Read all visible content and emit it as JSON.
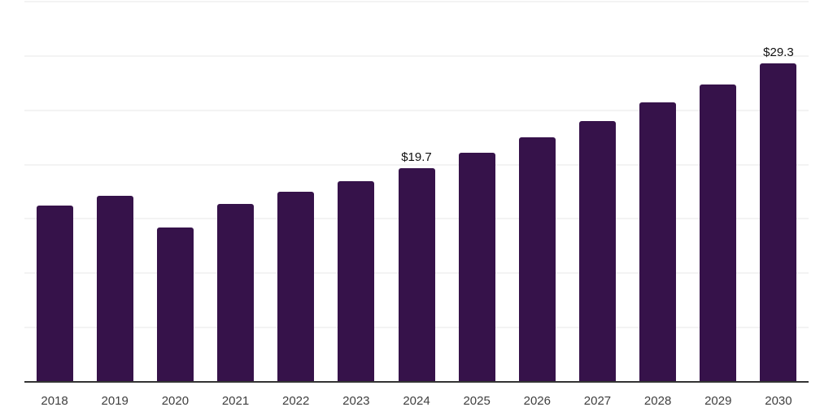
{
  "chart_data": {
    "type": "bar",
    "title": "",
    "xlabel": "",
    "ylabel": "",
    "categories": [
      "2018",
      "2019",
      "2020",
      "2021",
      "2022",
      "2023",
      "2024",
      "2025",
      "2026",
      "2027",
      "2028",
      "2029",
      "2030"
    ],
    "values": [
      16.2,
      17.1,
      14.2,
      16.4,
      17.5,
      18.5,
      19.7,
      21.1,
      22.5,
      24.0,
      25.7,
      27.4,
      29.3
    ],
    "data_labels": {
      "2024": "$19.7",
      "2030": "$29.3"
    },
    "ylim": [
      0,
      35
    ],
    "grid_step": 5,
    "grid": true,
    "legend": false,
    "colors": {
      "bar": "#36124a",
      "gridline": "#f3f3f3",
      "axis": "#333333",
      "tick_label": "#3f3f3f",
      "data_label": "#111111",
      "background": "#ffffff"
    }
  }
}
